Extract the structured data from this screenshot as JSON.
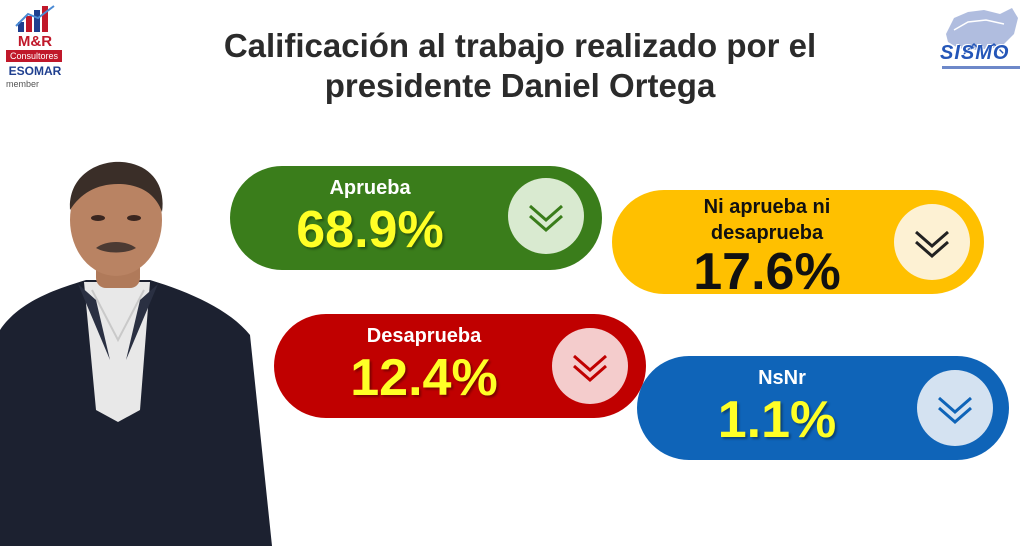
{
  "header": {
    "title_line1": "Calificación al trabajo realizado por el",
    "title_line2": "presidente Daniel Ortega"
  },
  "logos": {
    "left": {
      "name": "M&R",
      "sub": "Consultores",
      "org": "ESOMAR",
      "member": "member"
    },
    "right": {
      "name": "SISMO"
    }
  },
  "cards": [
    {
      "label": "Aprueba",
      "value": "68.9%",
      "color": "#3a7d1b",
      "icon": "chevron-down-double-icon"
    },
    {
      "label_line1": "Ni aprueba ni",
      "label_line2": "desaprueba",
      "value": "17.6%",
      "color": "#ffc000",
      "icon": "chevron-down-double-icon"
    },
    {
      "label": "Desaprueba",
      "value": "12.4%",
      "color": "#c00000",
      "icon": "chevron-down-double-icon"
    },
    {
      "label": "NsNr",
      "value": "1.1%",
      "color": "#0f64b8",
      "icon": "chevron-down-double-icon"
    }
  ]
}
